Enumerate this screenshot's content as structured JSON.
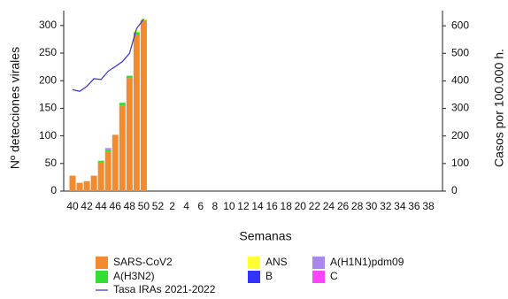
{
  "chart_data": {
    "type": "bar",
    "categories": [
      "40",
      null,
      "42",
      null,
      "44",
      null,
      "46",
      null,
      "48",
      null,
      "50",
      null,
      "52",
      null,
      "2",
      null,
      "4",
      null,
      "6",
      null,
      "8",
      null,
      "10",
      null,
      "12",
      null,
      "14",
      null,
      "16",
      null,
      "18",
      null,
      "20",
      null,
      "22",
      null,
      "24",
      null,
      "26",
      null,
      "28",
      null,
      "30",
      null,
      "32",
      null,
      "34",
      null,
      "36",
      null,
      "38",
      null
    ],
    "x_label": "Semanas",
    "y_label": "Nº detecciones virales",
    "y2_label": "Casos por 100.000 h.",
    "ylim": [
      0,
      327
    ],
    "yticks": [
      0,
      50,
      100,
      150,
      200,
      250,
      300
    ],
    "y2lim": [
      0,
      655
    ],
    "y2ticks": [
      0,
      100,
      200,
      300,
      400,
      500,
      600
    ],
    "stacked": true,
    "series": [
      {
        "name": "SARS-CoV2",
        "color": "#f28a30",
        "values": [
          28,
          15,
          18,
          28,
          52,
          72,
          102,
          155,
          205,
          283,
          308,
          null,
          null,
          null,
          null,
          null,
          null,
          null,
          null,
          null,
          null,
          null,
          null,
          null,
          null,
          null,
          null,
          null,
          null,
          null,
          null,
          null,
          null,
          null,
          null,
          null,
          null,
          null,
          null,
          null,
          null,
          null,
          null,
          null,
          null,
          null,
          null,
          null,
          null,
          null,
          null,
          null
        ]
      },
      {
        "name": "A(H3N2)",
        "color": "#33dd33",
        "values": [
          0,
          0,
          0,
          0,
          3,
          3,
          0,
          5,
          4,
          5,
          2,
          null,
          null,
          null,
          null,
          null,
          null,
          null,
          null,
          null,
          null,
          null,
          null,
          null,
          null,
          null,
          null,
          null,
          null,
          null,
          null,
          null,
          null,
          null,
          null,
          null,
          null,
          null,
          null,
          null,
          null,
          null,
          null,
          null,
          null,
          null,
          null,
          null,
          null,
          null,
          null,
          null
        ]
      },
      {
        "name": "A(H1N1)pdm09",
        "color": "#aa88ee",
        "values": [
          0,
          0,
          0,
          0,
          0,
          3,
          0,
          0,
          0,
          0,
          0,
          null,
          null,
          null,
          null,
          null,
          null,
          null,
          null,
          null,
          null,
          null,
          null,
          null,
          null,
          null,
          null,
          null,
          null,
          null,
          null,
          null,
          null,
          null,
          null,
          null,
          null,
          null,
          null,
          null,
          null,
          null,
          null,
          null,
          null,
          null,
          null,
          null,
          null,
          null,
          null,
          null
        ]
      },
      {
        "name": "ANS",
        "color": "#ffff33",
        "values": [
          0,
          0,
          0,
          0,
          0,
          0,
          0,
          0,
          0,
          3,
          2,
          null,
          null,
          null,
          null,
          null,
          null,
          null,
          null,
          null,
          null,
          null,
          null,
          null,
          null,
          null,
          null,
          null,
          null,
          null,
          null,
          null,
          null,
          null,
          null,
          null,
          null,
          null,
          null,
          null,
          null,
          null,
          null,
          null,
          null,
          null,
          null,
          null,
          null,
          null,
          null,
          null
        ]
      },
      {
        "name": "B",
        "color": "#3333ff",
        "values": [
          0,
          0,
          0,
          0,
          0,
          0,
          0,
          0,
          0,
          0,
          0,
          null,
          null,
          null,
          null,
          null,
          null,
          null,
          null,
          null,
          null,
          null,
          null,
          null,
          null,
          null,
          null,
          null,
          null,
          null,
          null,
          null,
          null,
          null,
          null,
          null,
          null,
          null,
          null,
          null,
          null,
          null,
          null,
          null,
          null,
          null,
          null,
          null,
          null,
          null,
          null,
          null
        ]
      },
      {
        "name": "C",
        "color": "#ff44ff",
        "values": [
          0,
          0,
          0,
          0,
          0,
          0,
          0,
          0,
          0,
          0,
          0,
          null,
          null,
          null,
          null,
          null,
          null,
          null,
          null,
          null,
          null,
          null,
          null,
          null,
          null,
          null,
          null,
          null,
          null,
          null,
          null,
          null,
          null,
          null,
          null,
          null,
          null,
          null,
          null,
          null,
          null,
          null,
          null,
          null,
          null,
          null,
          null,
          null,
          null,
          null,
          null,
          null
        ]
      },
      {
        "name": "Tasa IRAs 2021-2022",
        "color": "#3333cc",
        "type": "line",
        "axis": "y2",
        "values": [
          368,
          362,
          380,
          408,
          405,
          435,
          452,
          470,
          500,
          590,
          625,
          null,
          null,
          null,
          null,
          null,
          null,
          null,
          null,
          null,
          null,
          null,
          null,
          null,
          null,
          null,
          null,
          null,
          null,
          null,
          null,
          null,
          null,
          null,
          null,
          null,
          null,
          null,
          null,
          null,
          null,
          null,
          null,
          null,
          null,
          null,
          null,
          null,
          null,
          null,
          null,
          null
        ]
      }
    ]
  }
}
